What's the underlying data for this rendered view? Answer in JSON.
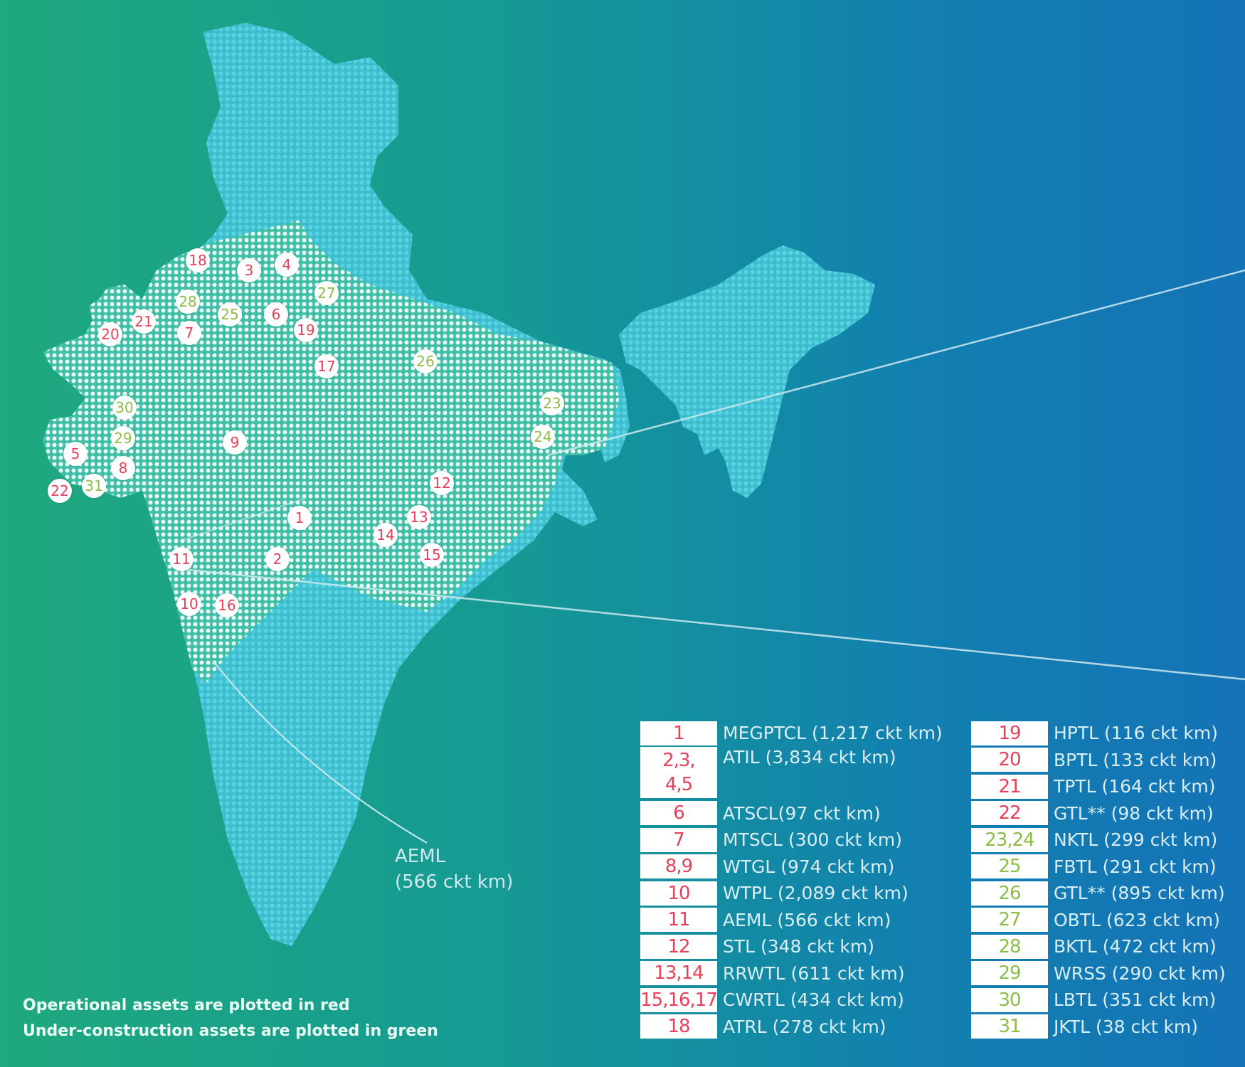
{
  "colors": {
    "operational": "#e8405a",
    "under_construction": "#8bbd47",
    "map_fill": "#3fc4d6"
  },
  "markers": [
    {
      "label": "1",
      "status": "operational"
    },
    {
      "label": "2",
      "status": "operational"
    },
    {
      "label": "3",
      "status": "operational"
    },
    {
      "label": "4",
      "status": "operational"
    },
    {
      "label": "5",
      "status": "operational"
    },
    {
      "label": "6",
      "status": "operational"
    },
    {
      "label": "7",
      "status": "operational"
    },
    {
      "label": "8",
      "status": "operational"
    },
    {
      "label": "9",
      "status": "operational"
    },
    {
      "label": "10",
      "status": "operational"
    },
    {
      "label": "11",
      "status": "operational"
    },
    {
      "label": "12",
      "status": "operational"
    },
    {
      "label": "13",
      "status": "operational"
    },
    {
      "label": "14",
      "status": "operational"
    },
    {
      "label": "15",
      "status": "operational"
    },
    {
      "label": "16",
      "status": "operational"
    },
    {
      "label": "17",
      "status": "operational"
    },
    {
      "label": "18",
      "status": "operational"
    },
    {
      "label": "19",
      "status": "operational"
    },
    {
      "label": "20",
      "status": "operational"
    },
    {
      "label": "21",
      "status": "operational"
    },
    {
      "label": "22",
      "status": "operational"
    },
    {
      "label": "23",
      "status": "under_construction"
    },
    {
      "label": "24",
      "status": "under_construction"
    },
    {
      "label": "25",
      "status": "under_construction"
    },
    {
      "label": "26",
      "status": "under_construction"
    },
    {
      "label": "27",
      "status": "under_construction"
    },
    {
      "label": "28",
      "status": "under_construction"
    },
    {
      "label": "29",
      "status": "under_construction"
    },
    {
      "label": "30",
      "status": "under_construction"
    },
    {
      "label": "31",
      "status": "under_construction"
    }
  ],
  "callout": {
    "line1": "AEML",
    "line2": "(566 ckt km)"
  },
  "notes": {
    "operational": "Operational assets are plotted in red",
    "under_construction": "Under-construction assets are plotted in green"
  },
  "legend": {
    "left": [
      {
        "num": "1",
        "name": "MEGPTCL (1,217 ckt km)",
        "status": "operational"
      },
      {
        "num": "2,3,\n4,5",
        "name": "ATIL (3,834 ckt km)",
        "status": "operational"
      },
      {
        "num": "6",
        "name": "ATSCL(97 ckt km)",
        "status": "operational"
      },
      {
        "num": "7",
        "name": "MTSCL (300 ckt km)",
        "status": "operational"
      },
      {
        "num": "8,9",
        "name": "WTGL (974 ckt km)",
        "status": "operational"
      },
      {
        "num": "10",
        "name": "WTPL (2,089 ckt km)",
        "status": "operational"
      },
      {
        "num": "11",
        "name": "AEML (566 ckt km)",
        "status": "operational"
      },
      {
        "num": "12",
        "name": "STL (348 ckt km)",
        "status": "operational"
      },
      {
        "num": "13,14",
        "name": "RRWTL (611 ckt km)",
        "status": "operational"
      },
      {
        "num": "15,16,17",
        "name": "CWRTL (434 ckt km)",
        "status": "operational"
      },
      {
        "num": "18",
        "name": "ATRL (278 ckt km)",
        "status": "operational"
      }
    ],
    "right": [
      {
        "num": "19",
        "name": "HPTL (116 ckt km)",
        "status": "operational"
      },
      {
        "num": "20",
        "name": "BPTL (133 ckt km)",
        "status": "operational"
      },
      {
        "num": "21",
        "name": "TPTL (164 ckt km)",
        "status": "operational"
      },
      {
        "num": "22",
        "name": "GTL** (98 ckt km)",
        "status": "operational"
      },
      {
        "num": "23,24",
        "name": "NKTL (299 ckt km)",
        "status": "under_construction"
      },
      {
        "num": "25",
        "name": "FBTL (291 ckt km)",
        "status": "under_construction"
      },
      {
        "num": "26",
        "name": "GTL** (895 ckt km)",
        "status": "under_construction"
      },
      {
        "num": "27",
        "name": "OBTL (623 ckt km)",
        "status": "under_construction"
      },
      {
        "num": "28",
        "name": "BKTL (472 ckt km)",
        "status": "under_construction"
      },
      {
        "num": "29",
        "name": "WRSS (290 ckt km)",
        "status": "under_construction"
      },
      {
        "num": "30",
        "name": "LBTL (351 ckt km)",
        "status": "under_construction"
      },
      {
        "num": "31",
        "name": "JKTL (38 ckt km)",
        "status": "under_construction"
      }
    ]
  }
}
